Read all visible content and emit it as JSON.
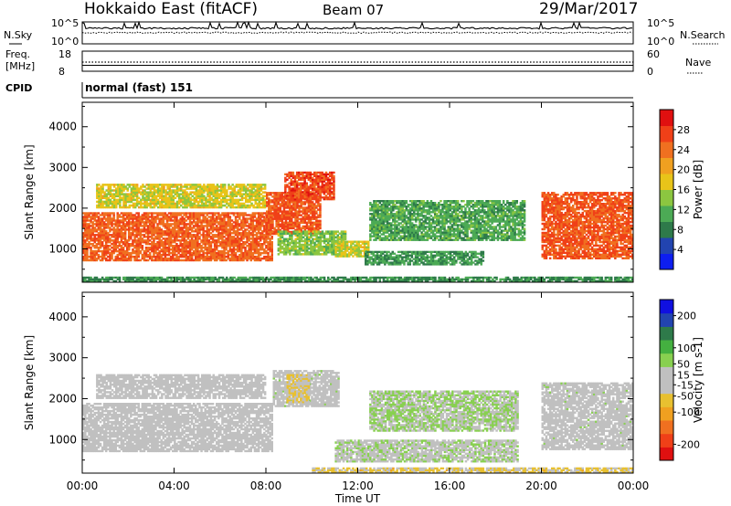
{
  "header": {
    "site": "Hokkaido East (fitACF)",
    "beam": "Beam 07",
    "date": "29/Mar/2017"
  },
  "strip": {
    "nsky_label": "N.Sky",
    "nsearch_label": "N.Search",
    "noise_tick_hi": "10^5",
    "noise_tick_lo": "10^0",
    "freq_label_1": "Freq.",
    "freq_label_2": "[MHz]",
    "freq_ticks": [
      "18",
      "8"
    ],
    "nave_label": "Nave",
    "nave_ticks": [
      "60",
      "0"
    ],
    "cpid_label": "CPID",
    "cpid_value": "normal (fast) 151"
  },
  "chart_data": [
    {
      "type": "heatmap",
      "panel": "power",
      "ylabel": "Slant Range [km]",
      "xlabel": "Time UT",
      "x_ticks": [
        "00:00",
        "04:00",
        "08:00",
        "12:00",
        "16:00",
        "20:00",
        "00:00"
      ],
      "x_range_hours": [
        0,
        24
      ],
      "y_ticks": [
        1000,
        2000,
        3000,
        4000
      ],
      "y_range_km": [
        180,
        4600
      ],
      "colorbar": {
        "label": "Power [dB]",
        "ticks": [
          4,
          8,
          12,
          16,
          20,
          24,
          28
        ],
        "range": [
          0,
          32
        ],
        "colors": [
          "#0d1ef0",
          "#2244b0",
          "#2e7a4a",
          "#4caa55",
          "#8cc640",
          "#e8c419",
          "#f0a020",
          "#f07020",
          "#f04018",
          "#e01010"
        ]
      },
      "regions": [
        {
          "t0": 0.0,
          "t1": 8.3,
          "r0": 700,
          "r1": 1900,
          "value": 25
        },
        {
          "t0": 0.6,
          "t1": 8.0,
          "r0": 2000,
          "r1": 2600,
          "value": 17
        },
        {
          "t0": 8.0,
          "t1": 10.4,
          "r0": 1350,
          "r1": 2400,
          "value": 26
        },
        {
          "t0": 8.8,
          "t1": 11.0,
          "r0": 2200,
          "r1": 2900,
          "value": 27
        },
        {
          "t0": 8.5,
          "t1": 11.5,
          "r0": 850,
          "r1": 1450,
          "value": 14
        },
        {
          "t0": 11.0,
          "t1": 12.5,
          "r0": 800,
          "r1": 1200,
          "value": 17
        },
        {
          "t0": 12.5,
          "t1": 19.3,
          "r0": 1200,
          "r1": 2200,
          "value": 11
        },
        {
          "t0": 12.3,
          "t1": 17.5,
          "r0": 600,
          "r1": 950,
          "value": 10
        },
        {
          "t0": 20.0,
          "t1": 24.0,
          "r0": 750,
          "r1": 2400,
          "value": 26
        },
        {
          "t0": 0.0,
          "t1": 24.0,
          "r0": 190,
          "r1": 320,
          "value": 9
        }
      ]
    },
    {
      "type": "heatmap",
      "panel": "velocity",
      "ylabel": "Slant Range [km]",
      "xlabel": "Time UT",
      "x_ticks": [
        "00:00",
        "04:00",
        "08:00",
        "12:00",
        "16:00",
        "20:00",
        "00:00"
      ],
      "x_range_hours": [
        0,
        24
      ],
      "y_ticks": [
        1000,
        2000,
        3000,
        4000
      ],
      "y_range_km": [
        180,
        4600
      ],
      "colorbar": {
        "label": "Velocity [m s-1]",
        "ticks": [
          200,
          100,
          50,
          15,
          -15,
          -50,
          -100,
          -200
        ],
        "range": [
          -250,
          250
        ],
        "colors": [
          "#e01010",
          "#f04018",
          "#f07020",
          "#f0a020",
          "#e8c030",
          "#c0c0c0",
          "#c0c0c0",
          "#88d050",
          "#44b040",
          "#2e7a4a",
          "#2244b0",
          "#1010e0"
        ]
      },
      "regions": [
        {
          "t0": 0.0,
          "t1": 8.3,
          "r0": 700,
          "r1": 1900,
          "value": 0
        },
        {
          "t0": 0.6,
          "t1": 8.0,
          "r0": 2000,
          "r1": 2600,
          "value": 0
        },
        {
          "t0": 8.3,
          "t1": 11.2,
          "r0": 1800,
          "r1": 2700,
          "value": 5
        },
        {
          "t0": 8.9,
          "t1": 9.9,
          "r0": 1900,
          "r1": 2600,
          "value": -40
        },
        {
          "t0": 12.5,
          "t1": 19.0,
          "r0": 1200,
          "r1": 2200,
          "value": 40
        },
        {
          "t0": 11.0,
          "t1": 19.0,
          "r0": 450,
          "r1": 1000,
          "value": 25
        },
        {
          "t0": 20.0,
          "t1": 24.0,
          "r0": 750,
          "r1": 2400,
          "value": 3
        },
        {
          "t0": 10.0,
          "t1": 24.0,
          "r0": 190,
          "r1": 320,
          "value": -45
        }
      ]
    }
  ]
}
